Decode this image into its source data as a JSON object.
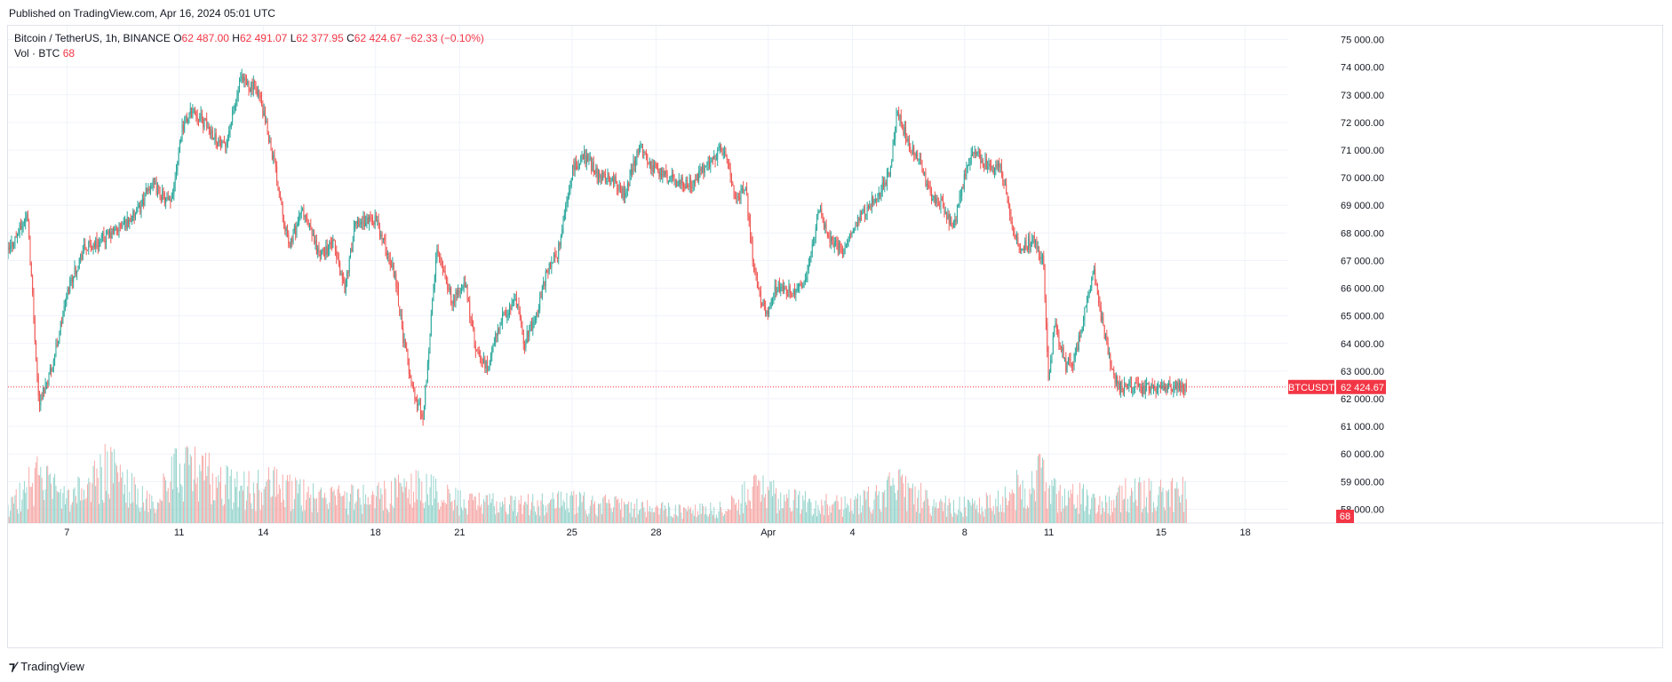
{
  "header": {
    "published": "Published on TradingView.com, Apr 16, 2024 05:01 UTC"
  },
  "legend": {
    "symbol": "Bitcoin / TetherUS, 1h, BINANCE",
    "open_label": "O",
    "open": "62 487.00",
    "high_label": "H",
    "high": "62 491.07",
    "low_label": "L",
    "low": "62 377.95",
    "close_label": "C",
    "close": "62 424.67",
    "change": "−62.33 (−0.10%)",
    "volume_label": "Vol · BTC",
    "volume": "68"
  },
  "price_tag": {
    "symbol": "BTCUSDT",
    "price": "62 424.67"
  },
  "volume_tag": "68",
  "footer": {
    "brand": "TradingView"
  },
  "colors": {
    "up": "#26a69a",
    "down": "#ef5350",
    "up_vol": "#8fd1c9",
    "down_vol": "#f5a3a1",
    "grid": "#f0f3fa",
    "tag": "#f23645"
  },
  "chart_data": {
    "type": "candlestick",
    "ylim": [
      57500,
      75500
    ],
    "y_ticks": [
      "58 000.00",
      "59 000.00",
      "60 000.00",
      "61 000.00",
      "62 000.00",
      "63 000.00",
      "64 000.00",
      "65 000.00",
      "66 000.00",
      "67 000.00",
      "68 000.00",
      "69 000.00",
      "70 000.00",
      "71 000.00",
      "72 000.00",
      "73 000.00",
      "74 000.00",
      "75 000.00"
    ],
    "y_tick_values": [
      58000,
      59000,
      60000,
      61000,
      62000,
      63000,
      64000,
      65000,
      66000,
      67000,
      68000,
      69000,
      70000,
      71000,
      72000,
      73000,
      74000,
      75000
    ],
    "x_ticks": [
      "7",
      "11",
      "14",
      "18",
      "21",
      "25",
      "28",
      "Apr",
      "4",
      "8",
      "11",
      "15",
      "18"
    ],
    "x_tick_days": [
      3,
      7,
      10,
      14,
      17,
      21,
      24,
      28,
      31,
      35,
      38,
      42,
      45
    ],
    "x_range_days": [
      0.9,
      46.5
    ],
    "last_price": 62424.67,
    "last_day": 42.9,
    "anchors": [
      [
        0.9,
        67300
      ],
      [
        1.6,
        68700
      ],
      [
        2.0,
        61800
      ],
      [
        2.5,
        63300
      ],
      [
        3.1,
        66200
      ],
      [
        3.6,
        67400
      ],
      [
        4.5,
        67900
      ],
      [
        5.5,
        68700
      ],
      [
        6.0,
        69800
      ],
      [
        6.7,
        69000
      ],
      [
        7.1,
        71800
      ],
      [
        7.5,
        72500
      ],
      [
        8.2,
        71600
      ],
      [
        8.6,
        71000
      ],
      [
        9.2,
        73500
      ],
      [
        9.8,
        73200
      ],
      [
        10.3,
        71000
      ],
      [
        10.6,
        69400
      ],
      [
        10.9,
        67500
      ],
      [
        11.4,
        68800
      ],
      [
        12.0,
        67200
      ],
      [
        12.5,
        67600
      ],
      [
        12.9,
        66000
      ],
      [
        13.3,
        68400
      ],
      [
        14.0,
        68500
      ],
      [
        14.3,
        67600
      ],
      [
        14.7,
        66500
      ],
      [
        15.0,
        64100
      ],
      [
        15.4,
        62000
      ],
      [
        15.7,
        61400
      ],
      [
        16.2,
        67600
      ],
      [
        16.7,
        65600
      ],
      [
        17.2,
        66100
      ],
      [
        17.6,
        63600
      ],
      [
        18.0,
        63100
      ],
      [
        18.4,
        64700
      ],
      [
        19.0,
        65600
      ],
      [
        19.3,
        64000
      ],
      [
        19.8,
        65300
      ],
      [
        20.1,
        66600
      ],
      [
        20.5,
        67300
      ],
      [
        21.0,
        70200
      ],
      [
        21.4,
        70800
      ],
      [
        21.9,
        70200
      ],
      [
        22.5,
        69900
      ],
      [
        22.9,
        69300
      ],
      [
        23.4,
        71200
      ],
      [
        23.8,
        70500
      ],
      [
        24.3,
        70100
      ],
      [
        24.8,
        69800
      ],
      [
        25.3,
        69800
      ],
      [
        25.8,
        70500
      ],
      [
        26.3,
        71000
      ],
      [
        26.5,
        70800
      ],
      [
        26.8,
        69300
      ],
      [
        27.2,
        69500
      ],
      [
        27.5,
        66600
      ],
      [
        27.9,
        65000
      ],
      [
        28.3,
        66100
      ],
      [
        29.0,
        65700
      ],
      [
        29.4,
        66700
      ],
      [
        29.8,
        68900
      ],
      [
        30.2,
        67800
      ],
      [
        30.7,
        67300
      ],
      [
        31.3,
        68700
      ],
      [
        31.9,
        69400
      ],
      [
        32.3,
        70000
      ],
      [
        32.6,
        72400
      ],
      [
        32.9,
        71500
      ],
      [
        33.4,
        70600
      ],
      [
        33.8,
        69200
      ],
      [
        34.2,
        69100
      ],
      [
        34.6,
        68100
      ],
      [
        35.0,
        70100
      ],
      [
        35.3,
        71000
      ],
      [
        35.6,
        70700
      ],
      [
        36.0,
        70200
      ],
      [
        36.3,
        70500
      ],
      [
        36.7,
        68000
      ],
      [
        37.0,
        67300
      ],
      [
        37.4,
        67800
      ],
      [
        37.8,
        67000
      ],
      [
        38.0,
        62500
      ],
      [
        38.2,
        64700
      ],
      [
        38.6,
        63200
      ],
      [
        38.9,
        63300
      ],
      [
        39.3,
        65300
      ],
      [
        39.6,
        66600
      ],
      [
        39.9,
        64800
      ],
      [
        40.2,
        63200
      ],
      [
        40.5,
        62400
      ]
    ],
    "volume_anchors": [
      [
        0.9,
        12
      ],
      [
        2.0,
        40
      ],
      [
        3.0,
        18
      ],
      [
        4.5,
        45
      ],
      [
        6.0,
        15
      ],
      [
        7.1,
        48
      ],
      [
        9.2,
        28
      ],
      [
        10.3,
        32
      ],
      [
        12.0,
        20
      ],
      [
        14.0,
        22
      ],
      [
        15.5,
        30
      ],
      [
        17.0,
        18
      ],
      [
        19.0,
        15
      ],
      [
        21.0,
        18
      ],
      [
        23.0,
        14
      ],
      [
        25.0,
        10
      ],
      [
        26.5,
        12
      ],
      [
        27.5,
        28
      ],
      [
        29.0,
        18
      ],
      [
        31.0,
        14
      ],
      [
        32.6,
        30
      ],
      [
        34.0,
        16
      ],
      [
        35.6,
        14
      ],
      [
        36.7,
        30
      ],
      [
        37.8,
        40
      ],
      [
        38.2,
        25
      ],
      [
        39.0,
        22
      ],
      [
        40.2,
        18
      ],
      [
        40.5,
        25
      ]
    ]
  }
}
